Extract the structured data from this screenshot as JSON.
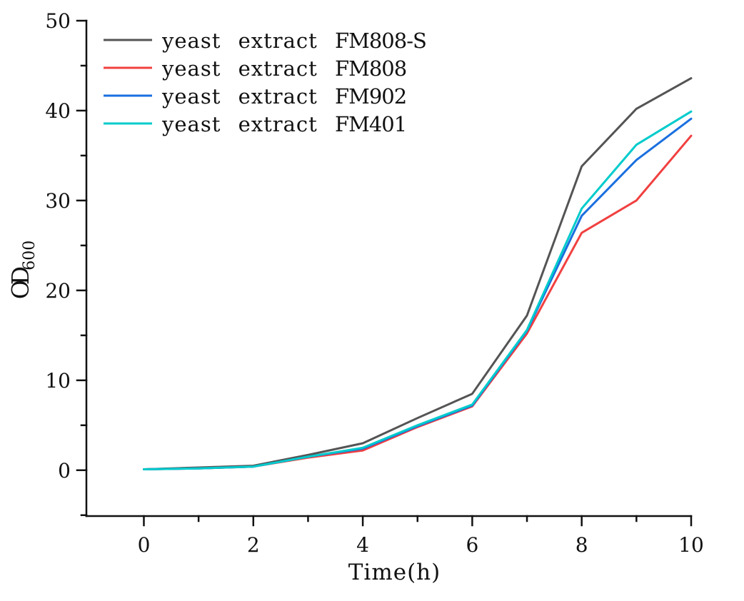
{
  "figure": {
    "background": "#ffffff",
    "axis_color": "#111111",
    "text_color": "#111111"
  },
  "chart_data": {
    "type": "line",
    "xlabel": "Time(h)",
    "ylabel": "OD",
    "ylabel_subscript": "600",
    "x": [
      0,
      1,
      2,
      3,
      4,
      5,
      6,
      7,
      8,
      9,
      10
    ],
    "series": [
      {
        "name": "yeast extract FM808-S",
        "label_prefix": "yeast extract",
        "label_code": "FM808-S",
        "color": "#545454",
        "values": [
          0.1,
          0.3,
          0.5,
          1.7,
          3.0,
          5.8,
          8.5,
          17.2,
          33.8,
          40.2,
          43.6
        ]
      },
      {
        "name": "yeast extract FM808",
        "label_prefix": "yeast extract",
        "label_code": "FM808",
        "color": "#F14040",
        "values": [
          0.1,
          0.2,
          0.4,
          1.4,
          2.2,
          4.8,
          7.1,
          15.2,
          26.4,
          30.0,
          37.2
        ]
      },
      {
        "name": "yeast extract FM902",
        "label_prefix": "yeast extract",
        "label_code": "FM902",
        "color": "#1A6FDF",
        "values": [
          0.1,
          0.2,
          0.4,
          1.5,
          2.4,
          4.9,
          7.2,
          15.5,
          28.3,
          34.5,
          39.1
        ]
      },
      {
        "name": "yeast extract FM401",
        "label_prefix": "yeast extract",
        "label_code": "FM401",
        "color": "#00CBCC",
        "values": [
          0.1,
          0.2,
          0.4,
          1.5,
          2.5,
          5.0,
          7.3,
          15.6,
          29.1,
          36.2,
          39.9
        ]
      }
    ],
    "xlim": [
      -1.05,
      10
    ],
    "ylim": [
      -5.1,
      50
    ],
    "x_major_ticks": [
      0,
      2,
      4,
      6,
      8,
      10
    ],
    "x_minor_ticks": [
      1,
      3,
      5,
      7,
      9
    ],
    "y_major_ticks": [
      0,
      10,
      20,
      30,
      40,
      50
    ],
    "y_minor_ticks": [
      -5,
      5,
      15,
      25,
      35,
      45
    ],
    "grid": false,
    "legend_position": "top-left",
    "line_width": 3
  }
}
